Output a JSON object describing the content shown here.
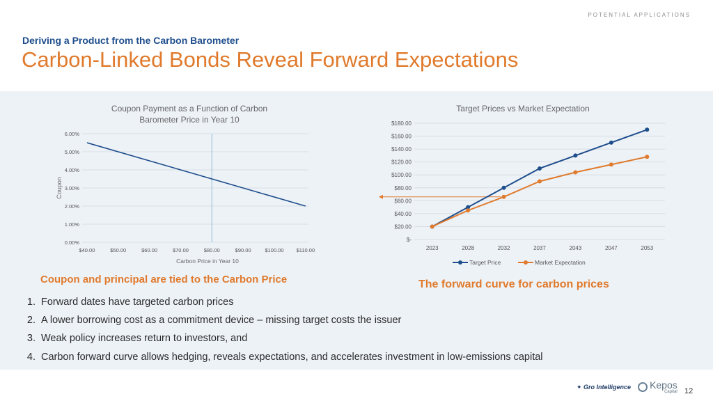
{
  "header": {
    "kicker": "POTENTIAL APPLICATIONS",
    "subtitle": "Deriving a Product from the Carbon Barometer",
    "title": "Carbon-Linked Bonds Reveal Forward Expectations"
  },
  "captions": {
    "left": "Coupon and principal are tied to the Carbon Price",
    "right": "The forward curve for carbon prices"
  },
  "bullets": [
    {
      "num": "1.",
      "text": "Forward dates have targeted carbon prices"
    },
    {
      "num": "2.",
      "text": "A lower borrowing cost as a commitment device – missing target costs the issuer"
    },
    {
      "num": "3.",
      "text": "Weak policy increases return to investors, and"
    },
    {
      "num": "4.",
      "text": "Carbon forward curve allows hedging, reveals expectations, and accelerates investment in low-emissions capital"
    }
  ],
  "footer": {
    "logo_gro": "Gro Intelligence",
    "logo_kepos": "Kepos",
    "logo_kepos_sub": "Capital",
    "page_number": "12"
  },
  "chart_data": [
    {
      "type": "line",
      "title": "Coupon Payment as a Function of Carbon Barometer Price in Year 10",
      "title_lines": [
        "Coupon Payment as a Function of Carbon",
        "Barometer Price in Year 10"
      ],
      "xlabel": "Carbon Price in Year 10",
      "ylabel": "Coupon",
      "x_ticks": [
        40,
        50,
        60,
        70,
        80,
        90,
        100,
        110
      ],
      "x_tick_labels": [
        "$40.00",
        "$50.00",
        "$60.00",
        "$70.00",
        "$80.00",
        "$90.00",
        "$100.00",
        "$110.00"
      ],
      "xlim": [
        40,
        110
      ],
      "y_ticks": [
        0,
        1,
        2,
        3,
        4,
        5,
        6
      ],
      "y_tick_labels": [
        "0.00%",
        "1.00%",
        "2.00%",
        "3.00%",
        "4.00%",
        "5.00%",
        "6.00%"
      ],
      "ylim": [
        0,
        6
      ],
      "series": [
        {
          "x": [
            40,
            110
          ],
          "values": [
            5.5,
            2.0
          ],
          "color": "#1f4e8c"
        }
      ],
      "reference_line_x": 80,
      "reference_line_color": "#9fc7d8",
      "grid": true
    },
    {
      "type": "line",
      "title": "Target Prices vs Market Expectation",
      "categories": [
        "2023",
        "2028",
        "2032",
        "2037",
        "2043",
        "2047",
        "2053"
      ],
      "y_ticks": [
        0,
        20,
        40,
        60,
        80,
        100,
        120,
        140,
        160,
        180
      ],
      "y_tick_labels": [
        "$-",
        "$20.00",
        "$40.00",
        "$60.00",
        "$80.00",
        "$100.00",
        "$120.00",
        "$140.00",
        "$160.00",
        "$180.00"
      ],
      "ylim": [
        0,
        180
      ],
      "series": [
        {
          "name": "Target Price",
          "values": [
            20,
            50,
            80,
            110,
            130,
            150,
            170
          ],
          "color": "#1f4e8c"
        },
        {
          "name": "Market Expectation",
          "values": [
            20,
            45,
            66,
            90,
            104,
            116,
            128
          ],
          "color": "#e07a2c"
        }
      ],
      "annotation_arrow_y": 66,
      "annotation_color": "#e07a2c",
      "legend": "bottom",
      "grid": true
    }
  ]
}
